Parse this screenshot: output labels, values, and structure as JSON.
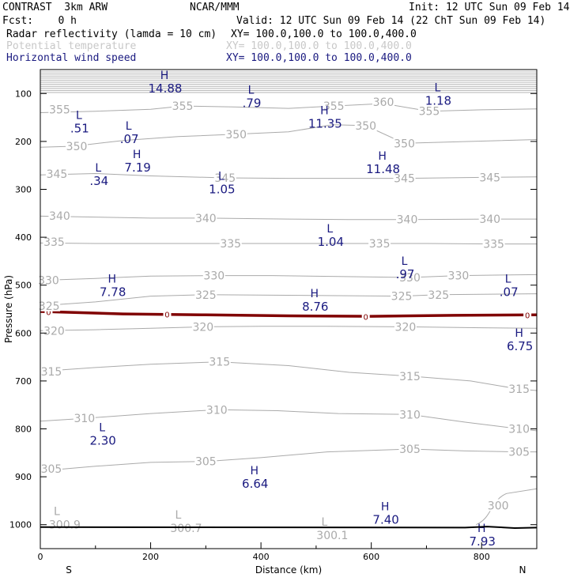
{
  "header": {
    "left1": "CONTRAST  3km ARW",
    "center1": "NCAR/MMM",
    "right1": "Init: 12 UTC Sun 09 Feb 14",
    "left2": "Fcst:    0 h",
    "right2": "Valid: 12 UTC Sun 09 Feb 14 (22 ChT Sun 09 Feb 14)",
    "field1": "Radar reflectivity (lamda = 10 cm)",
    "field1_xy": "XY= 100.0,100.0 to 100.0,400.0",
    "field2": "Potential temperature",
    "field2_xy": "XY= 100.0,100.0 to 100.0,400.0",
    "field3": "Horizontal wind speed",
    "field3_xy": "XY= 100.0,100.0 to 100.0,400.0"
  },
  "chart_data": {
    "type": "cross-section",
    "xlabel": "Distance (km)",
    "ylabel": "Pressure (hPa)",
    "xlim": [
      0,
      900
    ],
    "ylim": [
      1050,
      50
    ],
    "x_ticks": [
      0,
      200,
      400,
      600,
      800
    ],
    "y_ticks": [
      100,
      200,
      300,
      400,
      500,
      600,
      700,
      800,
      900,
      1000
    ],
    "end_labels": {
      "left": "S",
      "right": "N"
    },
    "colors": {
      "theta": "#aaaaaa",
      "wind": "#1a1a80",
      "freezing": "#800000"
    },
    "theta_labels": [
      {
        "x": 35,
        "p": 133,
        "t": "355"
      },
      {
        "x": 258,
        "p": 126,
        "t": "355"
      },
      {
        "x": 532,
        "p": 126,
        "t": "355"
      },
      {
        "x": 622,
        "p": 118,
        "t": "360"
      },
      {
        "x": 705,
        "p": 137,
        "t": "355"
      },
      {
        "x": 66,
        "p": 210,
        "t": "350"
      },
      {
        "x": 355,
        "p": 185,
        "t": "350"
      },
      {
        "x": 590,
        "p": 167,
        "t": "350"
      },
      {
        "x": 660,
        "p": 204,
        "t": "350"
      },
      {
        "x": 30,
        "p": 268,
        "t": "345"
      },
      {
        "x": 335,
        "p": 276,
        "t": "345"
      },
      {
        "x": 660,
        "p": 277,
        "t": "345"
      },
      {
        "x": 815,
        "p": 275,
        "t": "345"
      },
      {
        "x": 35,
        "p": 355,
        "t": "340"
      },
      {
        "x": 300,
        "p": 360,
        "t": "340"
      },
      {
        "x": 665,
        "p": 363,
        "t": "340"
      },
      {
        "x": 815,
        "p": 362,
        "t": "340"
      },
      {
        "x": 25,
        "p": 410,
        "t": "335"
      },
      {
        "x": 345,
        "p": 413,
        "t": "335"
      },
      {
        "x": 615,
        "p": 413,
        "t": "335"
      },
      {
        "x": 822,
        "p": 414,
        "t": "335"
      },
      {
        "x": 15,
        "p": 490,
        "t": "330"
      },
      {
        "x": 315,
        "p": 480,
        "t": "330"
      },
      {
        "x": 670,
        "p": 484,
        "t": "330"
      },
      {
        "x": 758,
        "p": 480,
        "t": "330"
      },
      {
        "x": 16,
        "p": 543,
        "t": "325"
      },
      {
        "x": 300,
        "p": 520,
        "t": "325"
      },
      {
        "x": 655,
        "p": 523,
        "t": "325"
      },
      {
        "x": 722,
        "p": 520,
        "t": "325"
      },
      {
        "x": 25,
        "p": 595,
        "t": "320"
      },
      {
        "x": 295,
        "p": 587,
        "t": "320"
      },
      {
        "x": 662,
        "p": 587,
        "t": "320"
      },
      {
        "x": 20,
        "p": 680,
        "t": "315"
      },
      {
        "x": 325,
        "p": 660,
        "t": "315"
      },
      {
        "x": 670,
        "p": 690,
        "t": "315"
      },
      {
        "x": 868,
        "p": 717,
        "t": "315"
      },
      {
        "x": 80,
        "p": 778,
        "t": "310"
      },
      {
        "x": 320,
        "p": 760,
        "t": "310"
      },
      {
        "x": 670,
        "p": 770,
        "t": "310"
      },
      {
        "x": 868,
        "p": 800,
        "t": "310"
      },
      {
        "x": 20,
        "p": 883,
        "t": "305"
      },
      {
        "x": 300,
        "p": 868,
        "t": "305"
      },
      {
        "x": 670,
        "p": 842,
        "t": "305"
      },
      {
        "x": 868,
        "p": 848,
        "t": "305"
      },
      {
        "x": 830,
        "p": 960,
        "t": "300"
      }
    ],
    "theta_extrema": [
      {
        "x": 30,
        "p": 980,
        "mark": "L",
        "t": "300.9"
      },
      {
        "x": 250,
        "p": 987,
        "mark": "L",
        "t": "300.7"
      },
      {
        "x": 515,
        "p": 1002,
        "mark": "L",
        "t": "300.1"
      }
    ],
    "wind_extrema": [
      {
        "x": 225,
        "p": 70,
        "mark": "H",
        "t": "14.88"
      },
      {
        "x": 382,
        "p": 100,
        "mark": "L",
        "t": ".79"
      },
      {
        "x": 720,
        "p": 95,
        "mark": "L",
        "t": "1.18"
      },
      {
        "x": 70,
        "p": 153,
        "mark": "L",
        "t": ".51"
      },
      {
        "x": 160,
        "p": 175,
        "mark": "L",
        "t": ".07"
      },
      {
        "x": 515,
        "p": 143,
        "mark": "H",
        "t": "11.35"
      },
      {
        "x": 175,
        "p": 235,
        "mark": "H",
        "t": "7.19"
      },
      {
        "x": 105,
        "p": 263,
        "mark": "L",
        "t": ".34"
      },
      {
        "x": 328,
        "p": 280,
        "mark": "L",
        "t": "1.05"
      },
      {
        "x": 620,
        "p": 238,
        "mark": "H",
        "t": "11.48"
      },
      {
        "x": 525,
        "p": 390,
        "mark": "L",
        "t": "1.04"
      },
      {
        "x": 660,
        "p": 458,
        "mark": "L",
        "t": ".97"
      },
      {
        "x": 130,
        "p": 495,
        "mark": "H",
        "t": "7.78"
      },
      {
        "x": 497,
        "p": 525,
        "mark": "H",
        "t": "8.76"
      },
      {
        "x": 848,
        "p": 495,
        "mark": "L",
        "t": ".07"
      },
      {
        "x": 868,
        "p": 608,
        "mark": "H",
        "t": "6.75"
      },
      {
        "x": 112,
        "p": 805,
        "mark": "L",
        "t": "2.30"
      },
      {
        "x": 388,
        "p": 895,
        "mark": "H",
        "t": "6.64"
      },
      {
        "x": 625,
        "p": 970,
        "mark": "H",
        "t": "7.40"
      },
      {
        "x": 800,
        "p": 1015,
        "mark": "H",
        "t": "7.93"
      }
    ],
    "freezing_level": {
      "label": "0",
      "x": [
        0,
        150,
        300,
        450,
        600,
        750,
        900
      ],
      "p": [
        555,
        560,
        562,
        564,
        565,
        563,
        562
      ]
    },
    "freezing_labels": [
      {
        "x": 15,
        "p": 556
      },
      {
        "x": 230,
        "p": 561
      },
      {
        "x": 590,
        "p": 566
      },
      {
        "x": 883,
        "p": 562
      }
    ]
  }
}
